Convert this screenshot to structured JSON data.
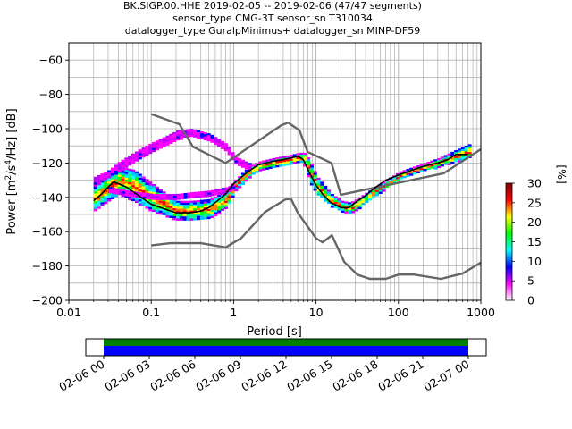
{
  "chart_data": {
    "type": "heatmap",
    "title_lines": [
      "BK.SIGP.00.HHE   2019-02-05 -- 2019-02-06  (47/47 segments)",
      "sensor_type CMG-3T sensor_sn T310034",
      "datalogger_type GuralpMinimus+ datalogger_sn MINP-DF59"
    ],
    "xlabel": "Period [s]",
    "ylabel": "Power [m²/s⁴/Hz] [dB]",
    "ylabel_parts": {
      "prefix": "Power [m",
      "sup1": "2",
      "mid": "/s",
      "sup2": "4",
      "suffix": "/Hz] [dB]"
    },
    "x_scale": "log",
    "xlim": [
      0.01,
      1000
    ],
    "ylim": [
      -200,
      -50
    ],
    "x_ticks": [
      0.01,
      0.1,
      1,
      10,
      100,
      1000
    ],
    "x_tick_labels": [
      "0.01",
      "0.1",
      "1",
      "10",
      "100",
      "1000"
    ],
    "y_ticks": [
      -200,
      -180,
      -160,
      -140,
      -120,
      -100,
      -80,
      -60
    ],
    "y_tick_labels": [
      "−200",
      "−180",
      "−160",
      "−140",
      "−120",
      "−100",
      "−80",
      "−60"
    ],
    "grid": true,
    "colorbar": {
      "label": "[%]",
      "range": [
        0,
        30
      ],
      "ticks": [
        0,
        5,
        10,
        15,
        20,
        25,
        30
      ],
      "tick_labels": [
        "0",
        "5",
        "10",
        "15",
        "20",
        "25",
        "30"
      ],
      "colormap": [
        "#ffffff",
        "#ff00ff",
        "#0000ff",
        "#00ffff",
        "#00ff00",
        "#ffff00",
        "#ff0000",
        "#800000"
      ]
    },
    "mode_line": {
      "name": "mode",
      "color": "#000000",
      "period": [
        0.02,
        0.025,
        0.03,
        0.035,
        0.05,
        0.07,
        0.1,
        0.15,
        0.2,
        0.3,
        0.4,
        0.5,
        0.6,
        0.8,
        1.0,
        1.5,
        2.0,
        3.0,
        4.0,
        5.0,
        6.0,
        7.0,
        8.0,
        10.0,
        12.0,
        15.0,
        20.0,
        25.0,
        30.0,
        40.0,
        50.0,
        70.0,
        100.0,
        150.0,
        200.0,
        300.0,
        400.0,
        500.0,
        700.0
      ],
      "power": [
        -142,
        -138,
        -134,
        -131,
        -134,
        -139,
        -144,
        -147,
        -149,
        -149,
        -148,
        -146,
        -143,
        -138,
        -132,
        -125,
        -121,
        -119,
        -118,
        -117,
        -116,
        -118,
        -124,
        -133,
        -138,
        -143,
        -146,
        -146,
        -143,
        -139,
        -135,
        -130,
        -127,
        -124,
        -122,
        -120,
        -118,
        -115,
        -115
      ]
    },
    "noise_models": [
      {
        "name": "NHNM",
        "color": "#666666",
        "period": [
          0.1,
          0.22,
          0.32,
          0.8,
          3.8,
          4.6,
          6.3,
          7.9,
          15.4,
          20.0,
          354.8,
          1000.0
        ],
        "power": [
          -91.5,
          -97.4,
          -110.5,
          -120.0,
          -98.0,
          -96.5,
          -101.0,
          -113.5,
          -120.0,
          -138.5,
          -126.0,
          -112.0
        ]
      },
      {
        "name": "NLNM",
        "color": "#666666",
        "period": [
          0.1,
          0.17,
          0.4,
          0.8,
          1.24,
          2.4,
          4.3,
          5.0,
          6.0,
          10.0,
          12.0,
          15.6,
          21.9,
          31.6,
          45.0,
          70.0,
          101.0,
          154.0,
          328.0,
          600.0,
          1000.0
        ],
        "power": [
          -168.0,
          -166.7,
          -166.7,
          -169.2,
          -163.7,
          -148.6,
          -141.1,
          -141.1,
          -149.0,
          -163.8,
          -166.2,
          -162.1,
          -177.5,
          -185.0,
          -187.5,
          -187.5,
          -185.0,
          -185.0,
          -187.5,
          -184.4,
          -178.0
        ]
      }
    ],
    "histogram_bands": [
      {
        "name": "main-band",
        "period": [
          0.02,
          0.03,
          0.04,
          0.06,
          0.1,
          0.15,
          0.2,
          0.3,
          0.5,
          0.8,
          1.0,
          1.5,
          2.0,
          3.0,
          5.0,
          6.0,
          7.0,
          8.0,
          10.0,
          15.0,
          20.0,
          25.0,
          30.0,
          50.0,
          100.0,
          200.0,
          300.0,
          500.0,
          700.0
        ],
        "upper": [
          -132,
          -126,
          -122,
          -124,
          -132,
          -138,
          -142,
          -142,
          -141,
          -136,
          -130,
          -122,
          -119,
          -117,
          -115,
          -114,
          -114,
          -118,
          -128,
          -138,
          -142,
          -143,
          -141,
          -134,
          -125,
          -120,
          -117,
          -112,
          -109
        ],
        "lower": [
          -147,
          -142,
          -138,
          -142,
          -148,
          -151,
          -153,
          -153,
          -152,
          -146,
          -136,
          -128,
          -124,
          -122,
          -120,
          -119,
          -121,
          -130,
          -138,
          -145,
          -148,
          -149,
          -147,
          -139,
          -129,
          -124,
          -122,
          -119,
          -117
        ]
      },
      {
        "name": "upper-branch",
        "period": [
          0.02,
          0.03,
          0.04,
          0.07,
          0.1,
          0.15,
          0.2,
          0.3,
          0.5,
          0.8,
          1.0,
          1.5
        ],
        "upper": [
          -128,
          -124,
          -119,
          -112,
          -108,
          -104,
          -101,
          -100,
          -103,
          -109,
          -116,
          -120
        ],
        "lower": [
          -133,
          -128,
          -124,
          -117,
          -113,
          -109,
          -106,
          -104,
          -107,
          -113,
          -120,
          -124
        ]
      },
      {
        "name": "middle-branch",
        "period": [
          0.03,
          0.05,
          0.1,
          0.2,
          0.3,
          0.5,
          0.8,
          1.0
        ],
        "upper": [
          -134,
          -136,
          -138,
          -138,
          -137,
          -136,
          -134,
          -132
        ],
        "lower": [
          -137,
          -139,
          -141,
          -141,
          -140,
          -139,
          -137,
          -135
        ]
      }
    ],
    "time_axis": {
      "tick_labels": [
        "02-06 00",
        "02-06 03",
        "02-06 06",
        "02-06 09",
        "02-06 12",
        "02-06 15",
        "02-06 18",
        "02-06 21",
        "02-07 00"
      ],
      "data_coverage_color": "#008000",
      "processed_coverage_color": "#0000ff"
    }
  }
}
